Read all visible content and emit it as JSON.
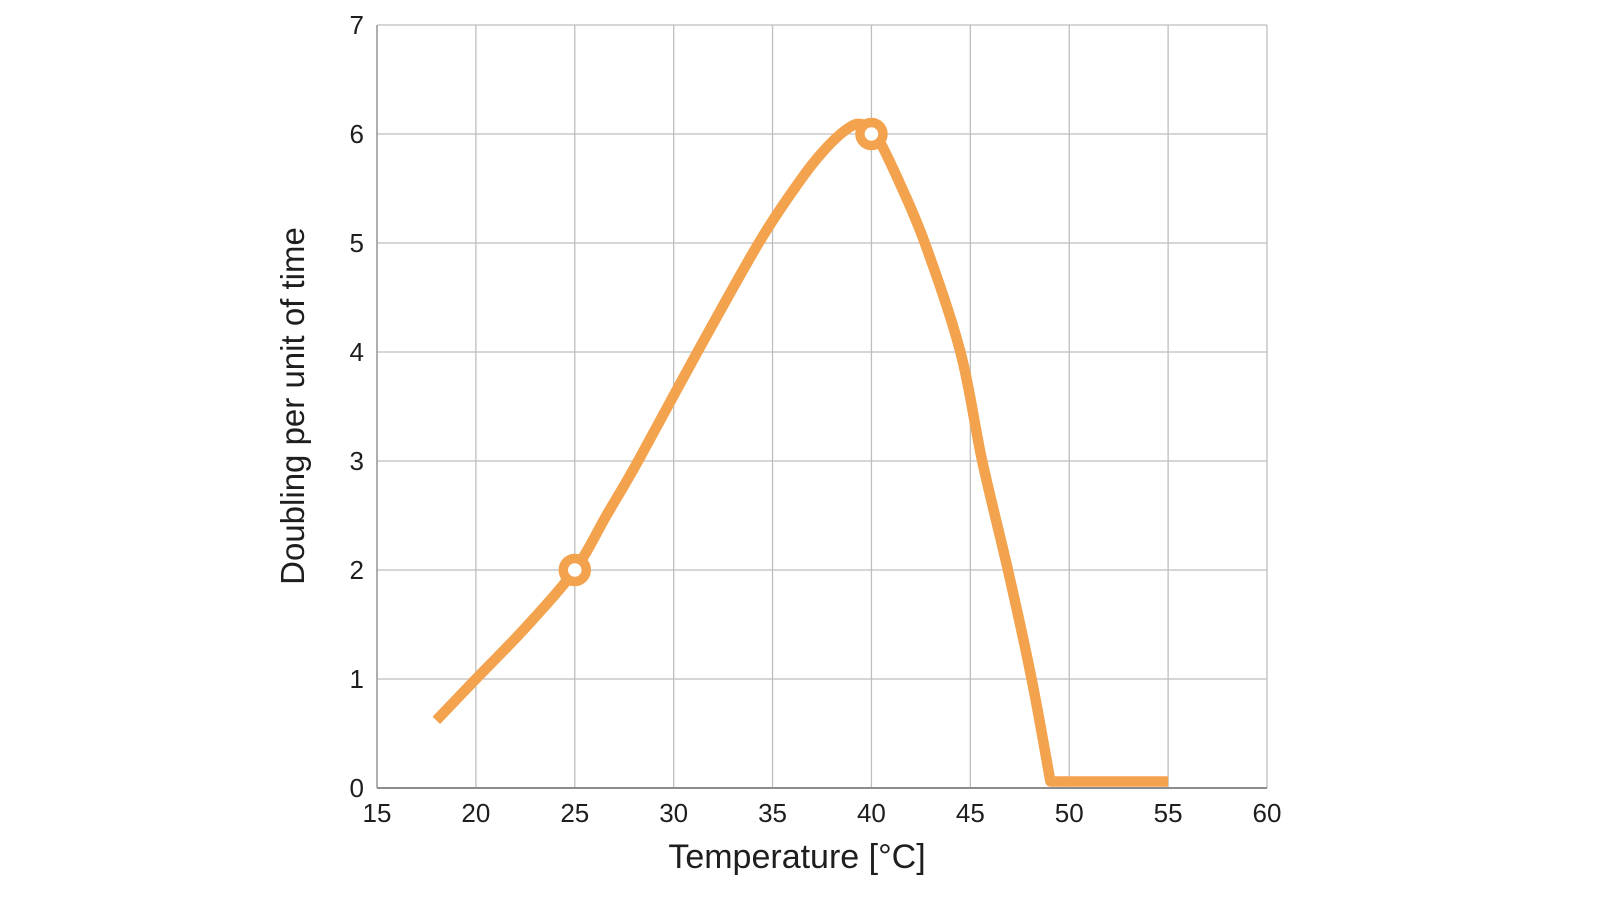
{
  "page": {
    "background": "#ffffff"
  },
  "colors": {
    "curve": "#F3A24E",
    "grid": "#BEBEBE",
    "axis_left": "#A0A0A0",
    "axis_bottom": "#8C8C8C",
    "text": "#1E1E1E",
    "marker_fill": "#FFFFFF"
  },
  "chart_data": {
    "type": "line",
    "title": "",
    "xlabel": "Temperature [°C]",
    "ylabel": "Doubling per unit of time",
    "xlim": [
      15,
      60
    ],
    "ylim": [
      0,
      7
    ],
    "xticks": [
      15,
      20,
      25,
      30,
      35,
      40,
      45,
      50,
      55,
      60
    ],
    "yticks": [
      0,
      1,
      2,
      3,
      4,
      5,
      6,
      7
    ],
    "grid": true,
    "legend": false,
    "series": [
      {
        "name": "doubling-rate-vs-temperature",
        "color": "#F3A24E",
        "line_width": 10.5,
        "smooth_points": [
          [
            18,
            0.62
          ],
          [
            20,
            1.0
          ],
          [
            22.5,
            1.47
          ],
          [
            25,
            2.0
          ],
          [
            26.6,
            2.5
          ],
          [
            28.2,
            3.0
          ],
          [
            31.2,
            4.0
          ],
          [
            34.3,
            5.0
          ],
          [
            36.3,
            5.55
          ],
          [
            37.6,
            5.85
          ],
          [
            38.8,
            6.05
          ],
          [
            39.5,
            6.09
          ],
          [
            40.2,
            6.0
          ],
          [
            41.3,
            5.6
          ],
          [
            42.7,
            5.0
          ],
          [
            44.5,
            4.0
          ],
          [
            45.6,
            3.0
          ],
          [
            46.9,
            2.0
          ],
          [
            48.1,
            1.0
          ],
          [
            49.05,
            0.06
          ]
        ],
        "flat_tail_points": [
          [
            49.05,
            0.06
          ],
          [
            55,
            0.06
          ]
        ],
        "marked_points": [
          [
            25,
            2
          ],
          [
            40,
            6
          ]
        ]
      }
    ]
  }
}
